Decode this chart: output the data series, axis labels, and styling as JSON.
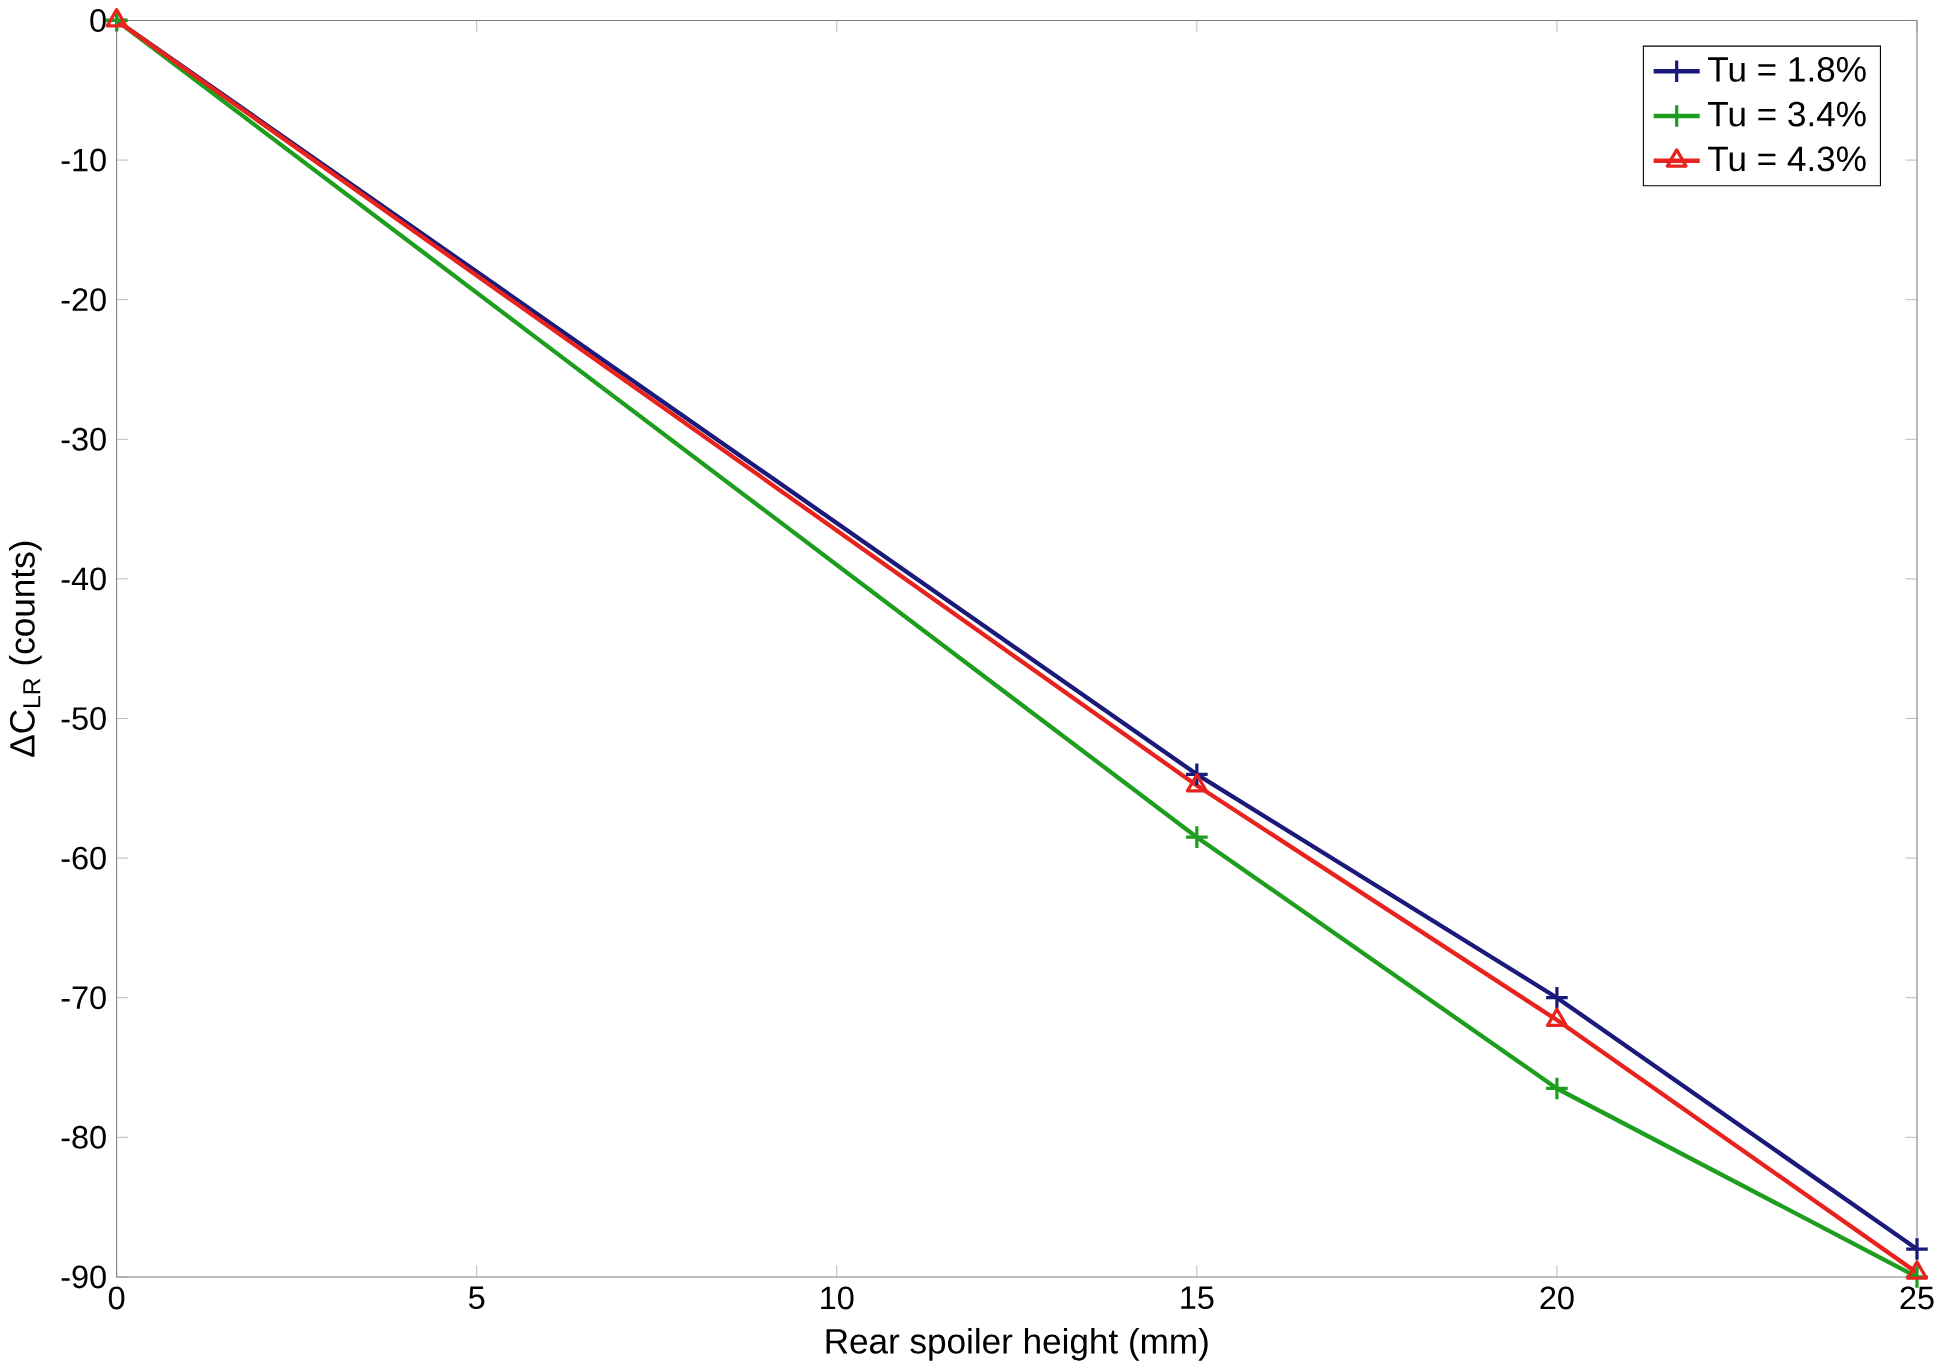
{
  "chart_data": {
    "type": "line",
    "xlabel": "Rear spoiler height (mm)",
    "ylabel": "ΔC$_{LR}$ (counts)",
    "x": [
      0,
      15,
      20,
      25
    ],
    "series": [
      {
        "name": "Tu = 1.8%",
        "color": "#1a1a7a",
        "values": [
          0,
          -54,
          -70,
          -88
        ],
        "marker": "cross"
      },
      {
        "name": "Tu = 3.4%",
        "color": "#1e9e1e",
        "values": [
          0,
          -58.5,
          -76.5,
          -90
        ],
        "marker": "cross"
      },
      {
        "name": "Tu = 4.3%",
        "color": "#e8231e",
        "values": [
          0,
          -54.8,
          -71.6,
          -89.7
        ],
        "marker": "triangle"
      }
    ],
    "xlim": [
      0,
      25
    ],
    "ylim": [
      -90,
      0
    ],
    "xticks": [
      0,
      5,
      10,
      15,
      20,
      25
    ],
    "yticks": [
      -90,
      -80,
      -70,
      -60,
      -50,
      -40,
      -30,
      -20,
      -10,
      0
    ],
    "legend": "top right",
    "grid": false,
    "line_style": "solid"
  }
}
